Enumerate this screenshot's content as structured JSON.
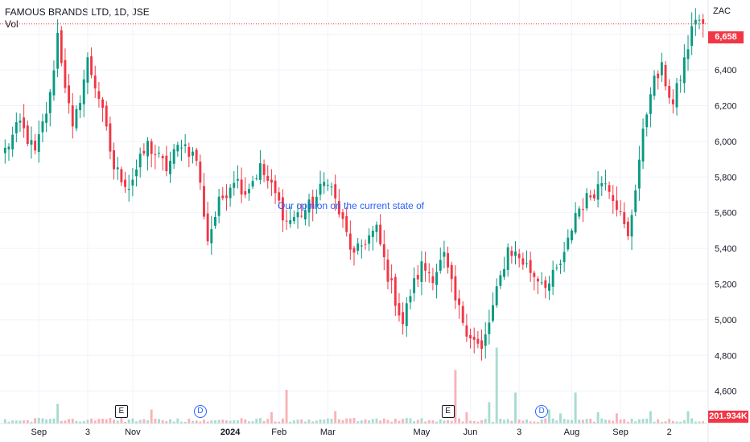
{
  "legend": {
    "symbol": "FAMOUS BRANDS LTD, 1D, JSE",
    "volume_label": "Vol"
  },
  "annotation": "Our opinion on the current state of",
  "currency": "ZAC",
  "last_price_label": "6,658",
  "volume_label": "201.934K",
  "events": [
    {
      "label": "E",
      "kind": "earnings",
      "date_index": 31
    },
    {
      "label": "D",
      "kind": "dividend",
      "date_index": 52
    },
    {
      "label": "E",
      "kind": "earnings",
      "date_index": 118
    },
    {
      "label": "D",
      "kind": "dividend",
      "date_index": 143
    }
  ],
  "colors": {
    "up": "#089981",
    "down": "#f23645",
    "up_vol": "#a7dcd1",
    "down_vol": "#f9b2b7",
    "grid": "#f0f3fa",
    "axis_line": "#e0e3eb",
    "price_line": "#f23645",
    "annotation": "#2962ff"
  },
  "chart_data": {
    "type": "candlestick",
    "title": "FAMOUS BRANDS LTD, 1D, JSE",
    "y_axis": {
      "ticks": [
        4600,
        4800,
        5000,
        5200,
        5400,
        5600,
        5800,
        6000,
        6200,
        6400,
        6600
      ],
      "tick_labels": [
        "4,600",
        "4,800",
        "5,000",
        "5,200",
        "5,400",
        "5,600",
        "5,800",
        "6,000",
        "6,200",
        "6,400",
        "6,600"
      ],
      "ylim": [
        4540,
        6720
      ],
      "unit": "ZAC"
    },
    "x_axis": {
      "ticks": [
        {
          "label": "Sep",
          "index": 9,
          "bold": false
        },
        {
          "label": "3",
          "index": 22,
          "bold": false
        },
        {
          "label": "Nov",
          "index": 34,
          "bold": false
        },
        {
          "label": "2024",
          "index": 60,
          "bold": true
        },
        {
          "label": "Feb",
          "index": 73,
          "bold": false
        },
        {
          "label": "Mar",
          "index": 86,
          "bold": false
        },
        {
          "label": "May",
          "index": 111,
          "bold": false
        },
        {
          "label": "Jun",
          "index": 124,
          "bold": false
        },
        {
          "label": "3",
          "index": 137,
          "bold": false
        },
        {
          "label": "Aug",
          "index": 151,
          "bold": false
        },
        {
          "label": "Sep",
          "index": 164,
          "bold": false
        },
        {
          "label": "2",
          "index": 177,
          "bold": false
        }
      ]
    },
    "last_price": 6658,
    "anchors": [
      [
        0,
        5950
      ],
      [
        4,
        6100
      ],
      [
        8,
        5930
      ],
      [
        12,
        6250
      ],
      [
        14,
        6600
      ],
      [
        18,
        6050
      ],
      [
        22,
        6450
      ],
      [
        25,
        6250
      ],
      [
        29,
        5850
      ],
      [
        33,
        5750
      ],
      [
        38,
        5980
      ],
      [
        43,
        5850
      ],
      [
        47,
        6000
      ],
      [
        51,
        5900
      ],
      [
        54,
        5450
      ],
      [
        57,
        5650
      ],
      [
        61,
        5800
      ],
      [
        64,
        5720
      ],
      [
        68,
        5850
      ],
      [
        72,
        5700
      ],
      [
        75,
        5550
      ],
      [
        79,
        5600
      ],
      [
        82,
        5650
      ],
      [
        86,
        5800
      ],
      [
        89,
        5600
      ],
      [
        93,
        5350
      ],
      [
        96,
        5450
      ],
      [
        99,
        5500
      ],
      [
        102,
        5250
      ],
      [
        106,
        4980
      ],
      [
        108,
        5150
      ],
      [
        111,
        5300
      ],
      [
        114,
        5250
      ],
      [
        117,
        5350
      ],
      [
        120,
        5100
      ],
      [
        123,
        4950
      ],
      [
        127,
        4820
      ],
      [
        131,
        5150
      ],
      [
        134,
        5400
      ],
      [
        137,
        5350
      ],
      [
        141,
        5250
      ],
      [
        145,
        5200
      ],
      [
        149,
        5350
      ],
      [
        152,
        5600
      ],
      [
        156,
        5700
      ],
      [
        160,
        5800
      ],
      [
        163,
        5650
      ],
      [
        166,
        5450
      ],
      [
        169,
        5900
      ],
      [
        172,
        6300
      ],
      [
        175,
        6400
      ],
      [
        178,
        6200
      ],
      [
        181,
        6450
      ],
      [
        184,
        6700
      ],
      [
        186,
        6658
      ]
    ],
    "volume_spikes": [
      [
        14,
        3.5
      ],
      [
        31,
        1.2
      ],
      [
        39,
        2.5
      ],
      [
        71,
        2.0
      ],
      [
        75,
        6.0
      ],
      [
        88,
        2.2
      ],
      [
        120,
        9.5
      ],
      [
        123,
        2.0
      ],
      [
        129,
        3.8
      ],
      [
        131,
        13.5
      ],
      [
        136,
        5.5
      ],
      [
        145,
        2.5
      ],
      [
        148,
        1.8
      ],
      [
        152,
        5.5
      ],
      [
        158,
        2.0
      ],
      [
        163,
        1.8
      ],
      [
        172,
        2.2
      ],
      [
        182,
        2.2
      ]
    ],
    "candle_count": 187
  }
}
